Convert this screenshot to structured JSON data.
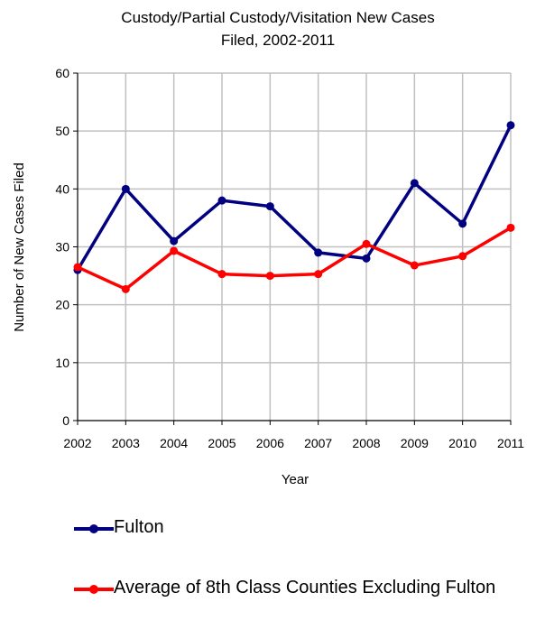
{
  "chart_data": {
    "type": "line",
    "title_lines": [
      "Custody/Partial Custody/Visitation New  Cases",
      "Filed, 2002-2011"
    ],
    "xlabel": "Year",
    "ylabel": "Number of New Cases Filed",
    "categories": [
      "2002",
      "2003",
      "2004",
      "2005",
      "2006",
      "2007",
      "2008",
      "2009",
      "2010",
      "2011"
    ],
    "ylim": [
      0,
      60
    ],
    "yticks": [
      "0",
      "10",
      "20",
      "30",
      "40",
      "50",
      "60"
    ],
    "grid": true,
    "legend_position": "bottom",
    "series": [
      {
        "name": "Fulton",
        "color": "#000080",
        "values": [
          26,
          40,
          31,
          38,
          37,
          29,
          28,
          41,
          34,
          51
        ]
      },
      {
        "name": "Average of 8th Class Counties Excluding Fulton",
        "color": "#ff0000",
        "values": [
          26.5,
          22.7,
          29.3,
          25.3,
          25,
          25.3,
          30.5,
          26.8,
          28.4,
          33.3
        ]
      }
    ]
  }
}
